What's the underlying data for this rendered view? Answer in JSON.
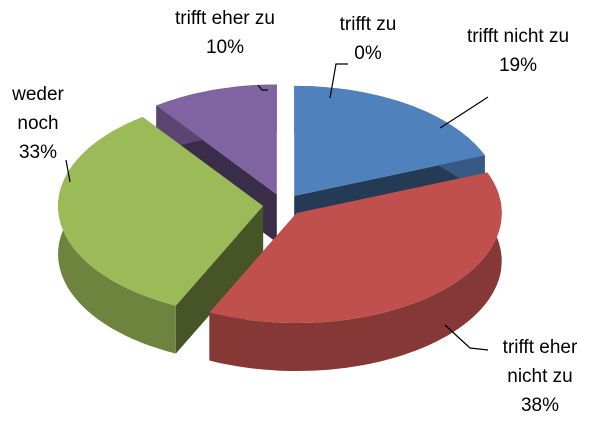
{
  "chart_data": {
    "type": "pie",
    "style": "3d-exploded",
    "categories": [
      "trifft nicht zu",
      "trifft eher nicht zu",
      "weder noch",
      "trifft eher zu",
      "trifft zu"
    ],
    "values": [
      19,
      38,
      33,
      10,
      0
    ],
    "value_labels": [
      "19%",
      "38%",
      "33%",
      "10%",
      "0%"
    ],
    "colors": [
      "#4f81bd",
      "#c0504d",
      "#9bbb59",
      "#8064a2",
      "#4bacc6"
    ]
  }
}
